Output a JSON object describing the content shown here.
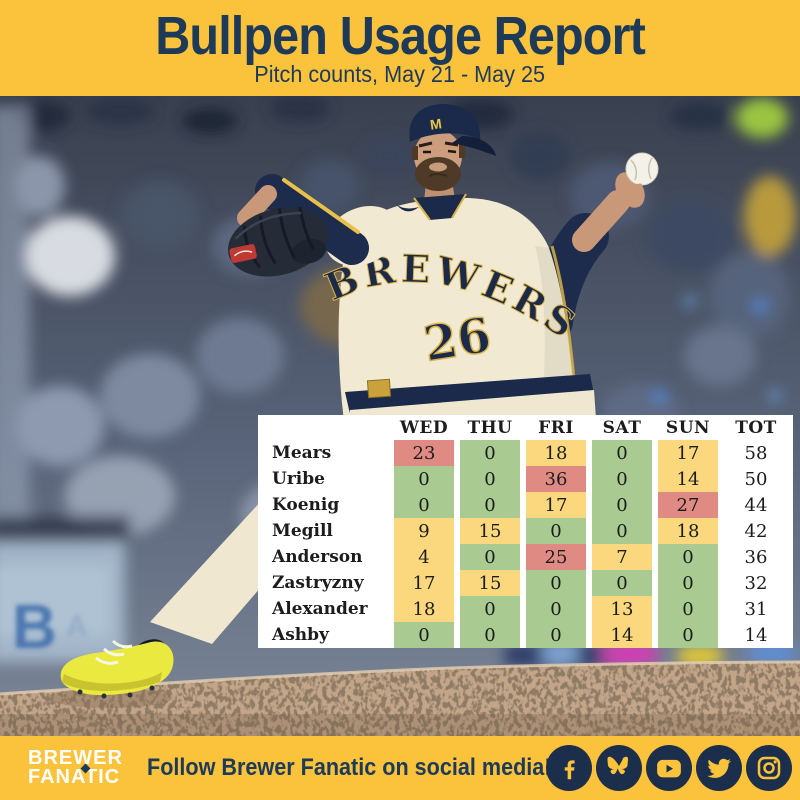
{
  "header": {
    "title": "Bullpen Usage Report",
    "subtitle": "Pitch counts, May 21 - May 25"
  },
  "photo": {
    "jersey_text": "BREWERS",
    "jersey_number": "26",
    "cap_letter": "M",
    "wall_letter": "B",
    "wall_letter2": "A"
  },
  "chart_data": {
    "type": "table",
    "title": "Bullpen Usage Report",
    "subtitle": "Pitch counts, May 21 - May 25",
    "columns": [
      "",
      "WED",
      "THU",
      "FRI",
      "SAT",
      "SUN",
      "TOT"
    ],
    "rows": [
      {
        "name": "Mears",
        "values": [
          23,
          0,
          18,
          0,
          17
        ],
        "total": 58
      },
      {
        "name": "Uribe",
        "values": [
          0,
          0,
          36,
          0,
          14
        ],
        "total": 50
      },
      {
        "name": "Koenig",
        "values": [
          0,
          0,
          17,
          0,
          27
        ],
        "total": 44
      },
      {
        "name": "Megill",
        "values": [
          9,
          15,
          0,
          0,
          18
        ],
        "total": 42
      },
      {
        "name": "Anderson",
        "values": [
          4,
          0,
          25,
          7,
          0
        ],
        "total": 36
      },
      {
        "name": "Zastryzny",
        "values": [
          17,
          15,
          0,
          0,
          0
        ],
        "total": 32
      },
      {
        "name": "Alexander",
        "values": [
          18,
          0,
          0,
          13,
          0
        ],
        "total": 31
      },
      {
        "name": "Ashby",
        "values": [
          0,
          0,
          0,
          14,
          0
        ],
        "total": 14
      }
    ],
    "color_coding": {
      "zero": "#A9CB92",
      "low": "#FBD87D",
      "high": "#DF8B84",
      "high_threshold": 23
    },
    "layout": {
      "grid": false,
      "legend": "none",
      "total_column_bg": "#FFFFFF"
    }
  },
  "footer": {
    "logo_line1": "BREWER",
    "logo_line2": "FANATIC",
    "cta": "Follow Brewer Fanatic on social media!",
    "social": [
      "facebook",
      "bluesky",
      "youtube",
      "twitter",
      "instagram"
    ]
  },
  "colors": {
    "banner_yellow": "#FBC23C",
    "navy": "#1E3A59",
    "icon_circle_navy": "#1B2E4C",
    "table_bg": "#FFFFFF",
    "cell_zero_green": "#A9CB92",
    "cell_moderate_yellow": "#FBD87D",
    "cell_high_red": "#DF8B84"
  }
}
